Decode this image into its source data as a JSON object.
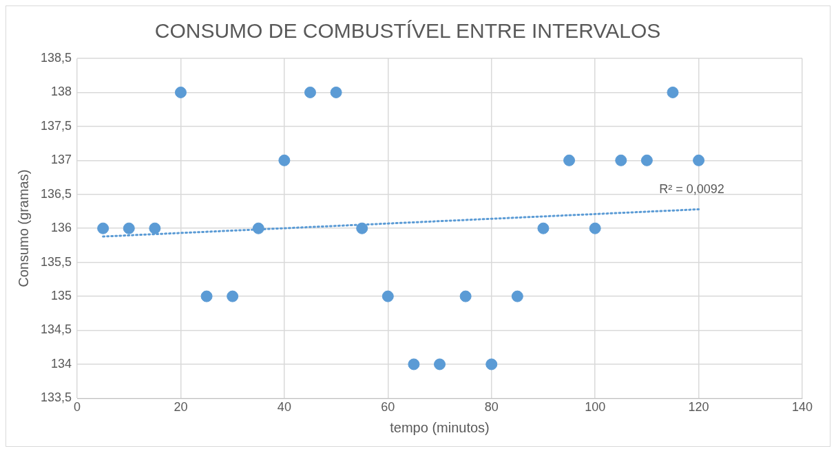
{
  "chart_data": {
    "type": "scatter",
    "title": "CONSUMO DE COMBUSTÍVEL ENTRE INTERVALOS",
    "xlabel": "tempo (minutos)",
    "ylabel": "Consumo (gramas)",
    "xlim": [
      0,
      140
    ],
    "xticks": [
      0,
      20,
      40,
      60,
      80,
      100,
      120,
      140
    ],
    "ylim": [
      133.5,
      138.5
    ],
    "yticks": [
      {
        "value": 133.5,
        "label": "133,5"
      },
      {
        "value": 134,
        "label": "134"
      },
      {
        "value": 134.5,
        "label": "134,5"
      },
      {
        "value": 135,
        "label": "135"
      },
      {
        "value": 135.5,
        "label": "135,5"
      },
      {
        "value": 136,
        "label": "136"
      },
      {
        "value": 136.5,
        "label": "136,5"
      },
      {
        "value": 137,
        "label": "137"
      },
      {
        "value": 137.5,
        "label": "137,5"
      },
      {
        "value": 138,
        "label": "138"
      },
      {
        "value": 138.5,
        "label": "138,5"
      }
    ],
    "grid": true,
    "legend": false,
    "marker": "circle",
    "series": [
      {
        "color": "#5b9bd5",
        "x": [
          5,
          10,
          15,
          20,
          25,
          30,
          35,
          40,
          45,
          50,
          55,
          60,
          65,
          70,
          75,
          80,
          85,
          90,
          95,
          100,
          105,
          110,
          115,
          120
        ],
        "values": [
          136,
          136,
          136,
          138,
          135,
          135,
          136,
          137,
          138,
          138,
          136,
          135,
          134,
          134,
          135,
          134,
          135,
          136,
          137,
          136,
          137,
          137,
          138,
          137
        ]
      },
      {
        "type": "line",
        "color": "#5b9bd5",
        "line_style": "dotted",
        "marker": "none",
        "x": [
          5,
          120
        ],
        "values": [
          135.88,
          136.28
        ]
      }
    ],
    "annotations": [
      "R² = 0,0092"
    ]
  }
}
